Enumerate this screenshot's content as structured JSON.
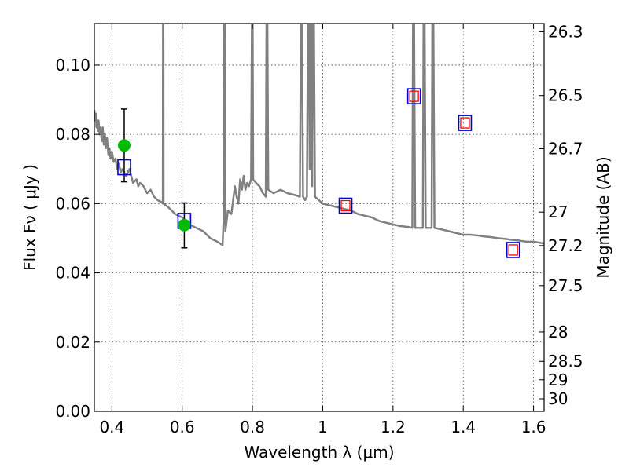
{
  "chart_data": {
    "type": "scatter",
    "title": "",
    "xlabel": "Wavelength  λ (μm)",
    "ylabel": "Flux  Fν  ( μJy )",
    "y2label": "Magnitude (AB)",
    "xlim": [
      0.35,
      1.63
    ],
    "ylim": [
      0.0,
      0.112
    ],
    "grid": true,
    "x_ticks": [
      0.4,
      0.6,
      0.8,
      1.0,
      1.2,
      1.4,
      1.6
    ],
    "x_tick_labels": [
      "0.4",
      "0.6",
      "0.8",
      "1",
      "1.2",
      "1.4",
      "1.6"
    ],
    "y_ticks": [
      0.0,
      0.02,
      0.04,
      0.06,
      0.08,
      0.1
    ],
    "y_tick_labels": [
      "0.00",
      "0.02",
      "0.04",
      "0.06",
      "0.08",
      "0.10"
    ],
    "y2_tick_labels": [
      "26.3",
      "26.5",
      "26.7",
      "27",
      "27.2",
      "27.5",
      "28",
      "28.5",
      "29",
      "30"
    ],
    "colors": {
      "model": "#808080",
      "observed": "#00bb00",
      "synthetic_outer": "#0000cc",
      "synthetic_inner": "#ff0000",
      "errorbar": "#000000"
    },
    "model_spectrum": [
      [
        0.35,
        0.087
      ],
      [
        0.352,
        0.084
      ],
      [
        0.354,
        0.086
      ],
      [
        0.356,
        0.082
      ],
      [
        0.358,
        0.084
      ],
      [
        0.36,
        0.081
      ],
      [
        0.362,
        0.084
      ],
      [
        0.365,
        0.08
      ],
      [
        0.368,
        0.082
      ],
      [
        0.371,
        0.078
      ],
      [
        0.374,
        0.082
      ],
      [
        0.377,
        0.077
      ],
      [
        0.38,
        0.08
      ],
      [
        0.383,
        0.076
      ],
      [
        0.386,
        0.079
      ],
      [
        0.39,
        0.074
      ],
      [
        0.393,
        0.076
      ],
      [
        0.396,
        0.073
      ],
      [
        0.4,
        0.075
      ],
      [
        0.405,
        0.072
      ],
      [
        0.41,
        0.073
      ],
      [
        0.415,
        0.07
      ],
      [
        0.42,
        0.0715
      ],
      [
        0.425,
        0.069
      ],
      [
        0.43,
        0.07
      ],
      [
        0.44,
        0.068
      ],
      [
        0.45,
        0.07
      ],
      [
        0.46,
        0.066
      ],
      [
        0.47,
        0.067
      ],
      [
        0.475,
        0.065
      ],
      [
        0.48,
        0.066
      ],
      [
        0.49,
        0.065
      ],
      [
        0.5,
        0.063
      ],
      [
        0.51,
        0.064
      ],
      [
        0.52,
        0.062
      ],
      [
        0.53,
        0.061
      ],
      [
        0.54,
        0.0605
      ],
      [
        0.545,
        0.06
      ],
      [
        0.5455,
        0.112
      ],
      [
        0.5465,
        0.112
      ],
      [
        0.547,
        0.06
      ],
      [
        0.56,
        0.059
      ],
      [
        0.58,
        0.057
      ],
      [
        0.6,
        0.056
      ],
      [
        0.62,
        0.054
      ],
      [
        0.64,
        0.053
      ],
      [
        0.66,
        0.052
      ],
      [
        0.68,
        0.05
      ],
      [
        0.7,
        0.049
      ],
      [
        0.715,
        0.048
      ],
      [
        0.718,
        0.056
      ],
      [
        0.7195,
        0.112
      ],
      [
        0.7215,
        0.112
      ],
      [
        0.723,
        0.052
      ],
      [
        0.73,
        0.058
      ],
      [
        0.74,
        0.057
      ],
      [
        0.75,
        0.065
      ],
      [
        0.755,
        0.062
      ],
      [
        0.76,
        0.06
      ],
      [
        0.765,
        0.067
      ],
      [
        0.77,
        0.064
      ],
      [
        0.775,
        0.068
      ],
      [
        0.78,
        0.064
      ],
      [
        0.785,
        0.066
      ],
      [
        0.79,
        0.065
      ],
      [
        0.796,
        0.067
      ],
      [
        0.7985,
        0.112
      ],
      [
        0.8005,
        0.112
      ],
      [
        0.802,
        0.067
      ],
      [
        0.81,
        0.066
      ],
      [
        0.82,
        0.065
      ],
      [
        0.83,
        0.063
      ],
      [
        0.838,
        0.062
      ],
      [
        0.84,
        0.112
      ],
      [
        0.8425,
        0.112
      ],
      [
        0.845,
        0.064
      ],
      [
        0.86,
        0.063
      ],
      [
        0.88,
        0.064
      ],
      [
        0.9,
        0.063
      ],
      [
        0.92,
        0.0625
      ],
      [
        0.935,
        0.062
      ],
      [
        0.938,
        0.112
      ],
      [
        0.941,
        0.112
      ],
      [
        0.944,
        0.062
      ],
      [
        0.95,
        0.061
      ],
      [
        0.955,
        0.062
      ],
      [
        0.958,
        0.112
      ],
      [
        0.961,
        0.112
      ],
      [
        0.963,
        0.07
      ],
      [
        0.965,
        0.112
      ],
      [
        0.968,
        0.112
      ],
      [
        0.97,
        0.065
      ],
      [
        0.972,
        0.112
      ],
      [
        0.975,
        0.112
      ],
      [
        0.978,
        0.062
      ],
      [
        1.0,
        0.06
      ],
      [
        1.02,
        0.0595
      ],
      [
        1.04,
        0.059
      ],
      [
        1.06,
        0.0585
      ],
      [
        1.08,
        0.058
      ],
      [
        1.1,
        0.057
      ],
      [
        1.12,
        0.0565
      ],
      [
        1.14,
        0.056
      ],
      [
        1.16,
        0.055
      ],
      [
        1.18,
        0.0545
      ],
      [
        1.2,
        0.054
      ],
      [
        1.22,
        0.0535
      ],
      [
        1.24,
        0.0533
      ],
      [
        1.255,
        0.053
      ],
      [
        1.257,
        0.112
      ],
      [
        1.26,
        0.112
      ],
      [
        1.263,
        0.053
      ],
      [
        1.28,
        0.053
      ],
      [
        1.285,
        0.053
      ],
      [
        1.287,
        0.112
      ],
      [
        1.29,
        0.112
      ],
      [
        1.293,
        0.053
      ],
      [
        1.31,
        0.053
      ],
      [
        1.312,
        0.112
      ],
      [
        1.315,
        0.112
      ],
      [
        1.318,
        0.053
      ],
      [
        1.34,
        0.0525
      ],
      [
        1.36,
        0.052
      ],
      [
        1.38,
        0.0515
      ],
      [
        1.4,
        0.051
      ],
      [
        1.42,
        0.051
      ],
      [
        1.44,
        0.0508
      ],
      [
        1.46,
        0.0505
      ],
      [
        1.48,
        0.0503
      ],
      [
        1.5,
        0.05
      ],
      [
        1.52,
        0.0498
      ],
      [
        1.54,
        0.0495
      ],
      [
        1.56,
        0.0493
      ],
      [
        1.58,
        0.049
      ],
      [
        1.6,
        0.049
      ],
      [
        1.63,
        0.0485
      ]
    ],
    "observed_points": [
      {
        "x": 0.435,
        "y": 0.0768,
        "yerr_low": 0.0663,
        "yerr_high": 0.0873
      },
      {
        "x": 0.606,
        "y": 0.0538,
        "yerr_low": 0.0472,
        "yerr_high": 0.0602
      }
    ],
    "synthetic_points_outer": [
      {
        "x": 0.435,
        "y": 0.0705
      },
      {
        "x": 0.606,
        "y": 0.055
      },
      {
        "x": 1.065,
        "y": 0.0594
      },
      {
        "x": 1.26,
        "y": 0.091
      },
      {
        "x": 1.405,
        "y": 0.0833
      },
      {
        "x": 1.542,
        "y": 0.0466
      }
    ],
    "synthetic_points_inner": [
      {
        "x": 1.065,
        "y": 0.0594
      },
      {
        "x": 1.26,
        "y": 0.091
      },
      {
        "x": 1.405,
        "y": 0.0833
      },
      {
        "x": 1.542,
        "y": 0.0466
      }
    ]
  }
}
